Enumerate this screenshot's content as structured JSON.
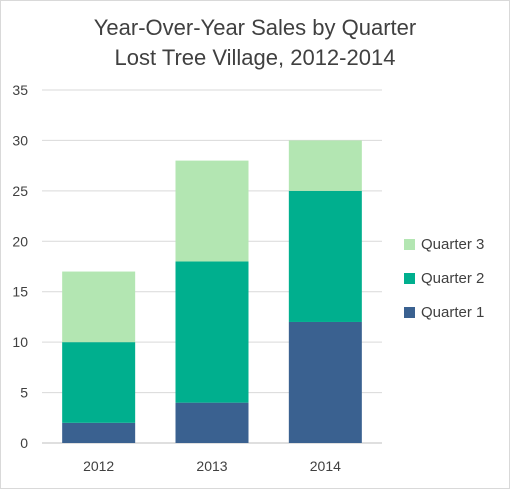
{
  "chart_data": {
    "type": "bar",
    "stacked": true,
    "title": "Year-Over-Year Sales by Quarter",
    "subtitle": "Lost Tree Village, 2012-2014",
    "categories": [
      "2012",
      "2013",
      "2014"
    ],
    "series": [
      {
        "name": "Quarter 1",
        "values": [
          2,
          4,
          12
        ],
        "color": "#3a6190"
      },
      {
        "name": "Quarter 2",
        "values": [
          8,
          14,
          13
        ],
        "color": "#00af8e"
      },
      {
        "name": "Quarter 3",
        "values": [
          7,
          10,
          5
        ],
        "color": "#b3e6b2"
      }
    ],
    "ylim": [
      0,
      35
    ],
    "yticks": [
      0,
      5,
      10,
      15,
      20,
      25,
      30,
      35
    ],
    "grid": true,
    "legend": "right"
  }
}
